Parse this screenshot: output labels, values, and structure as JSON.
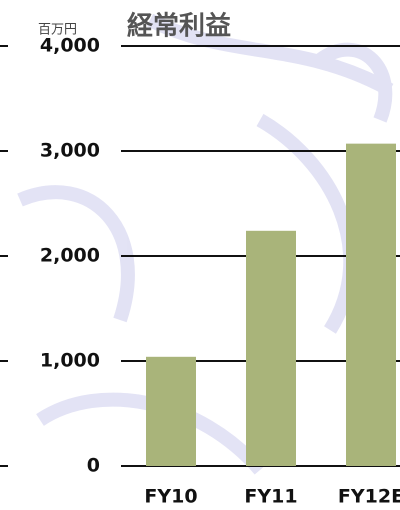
{
  "chart_data": {
    "type": "bar",
    "title": "経常利益",
    "y_unit": "百万円",
    "categories": [
      "FY10",
      "FY11",
      "FY12E"
    ],
    "values": [
      1040,
      2240,
      3070
    ],
    "color": "#a9b47a",
    "ylim": [
      0,
      4000
    ],
    "yticks": [
      0,
      {
        "value": 1000,
        "label": "1,000"
      },
      {
        "value": 2000,
        "label": "2,000"
      },
      {
        "value": 3000,
        "label": "3,000"
      },
      {
        "value": 4000,
        "label": "4,000"
      }
    ],
    "grid": true
  }
}
